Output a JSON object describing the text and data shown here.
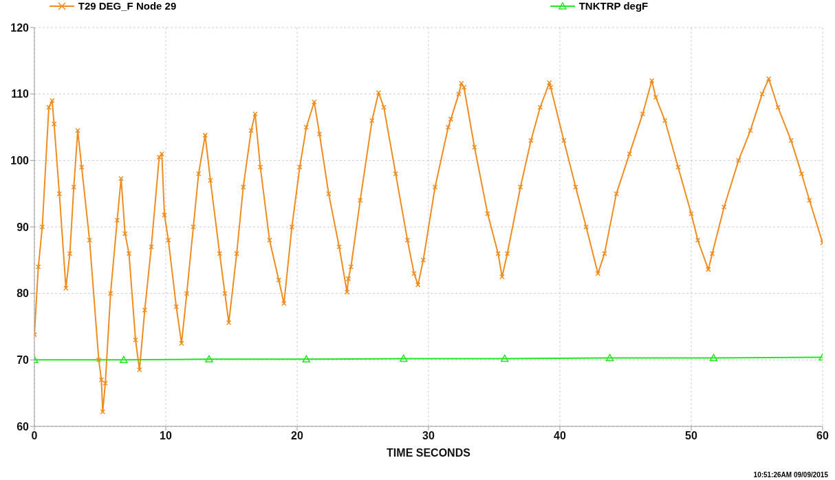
{
  "chart_data": {
    "type": "line",
    "xlabel": "TIME SECONDS",
    "xlim": [
      0,
      60
    ],
    "xticks": [
      0,
      10,
      20,
      30,
      40,
      50,
      60
    ],
    "ylim": [
      60,
      120
    ],
    "yticks": [
      60,
      70,
      80,
      90,
      100,
      110,
      120
    ],
    "grid": true,
    "legend": "top",
    "line_style": "solid",
    "annotations": [
      "10:51:26AM 09/09/2015"
    ],
    "series": [
      {
        "name": "T29 DEG_F Node 29",
        "color": "#f08c1e",
        "marker": "cross",
        "x": [
          0,
          0.3,
          0.6,
          1.1,
          1.35,
          1.5,
          1.9,
          2.4,
          2.7,
          3.0,
          3.3,
          3.6,
          4.2,
          4.9,
          5.1,
          5.2,
          5.4,
          5.8,
          6.3,
          6.6,
          6.9,
          7.2,
          7.7,
          8.0,
          8.4,
          8.9,
          9.5,
          9.7,
          9.9,
          10.2,
          10.8,
          11.2,
          11.6,
          12.1,
          12.5,
          13.0,
          13.4,
          14.1,
          14.5,
          14.8,
          15.4,
          15.9,
          16.5,
          16.8,
          17.2,
          17.9,
          18.6,
          19.0,
          19.6,
          20.2,
          20.7,
          21.3,
          21.7,
          22.4,
          23.2,
          23.8,
          23.9,
          24.1,
          24.8,
          25.7,
          26.2,
          26.6,
          27.5,
          28.4,
          28.9,
          29.2,
          29.6,
          30.5,
          31.5,
          31.7,
          32.3,
          32.5,
          32.7,
          33.5,
          34.5,
          35.3,
          35.6,
          36.0,
          37.0,
          37.8,
          38.5,
          39.2,
          39.3,
          40.3,
          41.2,
          42.0,
          42.9,
          43.4,
          44.3,
          45.3,
          46.3,
          47.0,
          47.3,
          48.0,
          49.0,
          50.0,
          50.5,
          51.3,
          51.6,
          52.5,
          53.6,
          54.5,
          55.4,
          55.9,
          56.6,
          57.6,
          58.4,
          59.0,
          60
        ],
        "values": [
          73.8,
          84,
          90,
          108,
          109,
          105.5,
          95,
          80.8,
          86,
          96,
          104.5,
          99,
          88,
          70,
          67,
          62.2,
          66.5,
          80,
          91,
          97.3,
          89,
          86,
          73,
          68.5,
          77.5,
          87,
          100.5,
          101,
          91.8,
          88,
          78,
          72.5,
          80,
          90,
          98,
          103.8,
          97,
          86,
          80,
          75.6,
          86,
          96,
          104.5,
          107,
          99,
          88,
          82,
          78.5,
          90,
          99,
          105,
          108.8,
          104,
          95,
          87,
          80.2,
          82.2,
          84,
          94,
          106,
          110.2,
          108,
          98,
          88,
          83,
          81.3,
          85,
          96,
          105,
          106.2,
          110,
          111.6,
          111,
          102,
          92,
          86,
          82.5,
          86,
          96,
          103,
          108,
          111.7,
          111,
          103,
          96,
          90,
          83,
          86,
          95,
          101,
          107,
          112,
          109.5,
          106,
          99,
          92,
          88,
          83.6,
          86,
          93,
          100,
          104.5,
          110,
          112.3,
          108,
          103,
          98,
          94,
          87.6
        ]
      },
      {
        "name": "TNKTRP degF",
        "color": "#22e622",
        "marker": "triangle",
        "x": [
          0,
          6.8,
          13.3,
          20.7,
          28.1,
          35.8,
          43.8,
          51.7,
          60
        ],
        "values": [
          70,
          70,
          70.1,
          70.1,
          70.2,
          70.2,
          70.3,
          70.3,
          70.4
        ]
      }
    ]
  }
}
